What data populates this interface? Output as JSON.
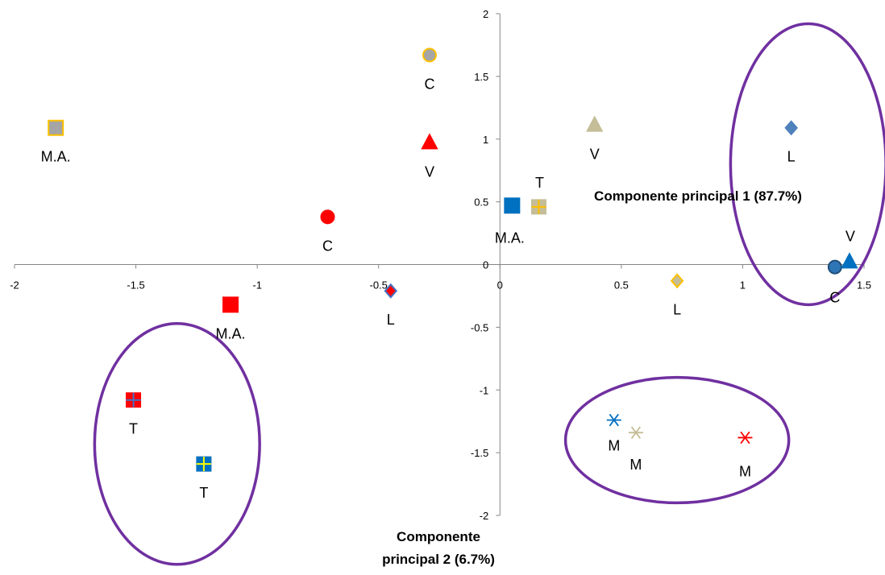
{
  "chart_data": {
    "type": "scatter",
    "xlim": [
      -2,
      1.5
    ],
    "ylim": [
      -2,
      2
    ],
    "x_ticks": [
      "-2",
      "-1.5",
      "-1",
      "-0.5",
      "0",
      "0.5",
      "1",
      "1.5"
    ],
    "y_ticks": [
      "2",
      "1.5",
      "1",
      "0.5",
      "0",
      "-0.5",
      "-1",
      "-1.5",
      "-2"
    ],
    "xlabel": "Componente principal 1 (87.7%)",
    "ylabel": "Componente principal 2 (6.7%)",
    "grid": false,
    "legend": "none",
    "points": [
      {
        "x": -0.29,
        "y": 1.67,
        "label": "C",
        "marker": "circle",
        "fill": "#a5a5a5",
        "stroke": "#ffc000"
      },
      {
        "x": -1.83,
        "y": 1.09,
        "label": "M.A.",
        "marker": "square",
        "fill": "#a5a5a5",
        "stroke": "#ffc000"
      },
      {
        "x": -0.29,
        "y": 0.97,
        "label": "V",
        "marker": "triangle",
        "fill": "#ff0000",
        "stroke": "#ff0000"
      },
      {
        "x": -0.71,
        "y": 0.38,
        "label": "C",
        "marker": "circle",
        "fill": "#ff0000",
        "stroke": "#ff0000"
      },
      {
        "x": -1.11,
        "y": -0.32,
        "label": "M.A.",
        "marker": "square",
        "fill": "#ff0000",
        "stroke": "#ff0000"
      },
      {
        "x": -0.45,
        "y": -0.21,
        "label": "L",
        "marker": "diamond",
        "fill": "#ff0000",
        "stroke": "#4472c4"
      },
      {
        "x": 0.05,
        "y": 0.47,
        "label": "M.A.",
        "marker": "square",
        "fill": "#0070c0",
        "stroke": "#0070c0"
      },
      {
        "x": 0.16,
        "y": 0.46,
        "label": "T",
        "marker": "square-plus",
        "fill": "#c4bd97",
        "stroke": "#ffc000"
      },
      {
        "x": 0.39,
        "y": 1.11,
        "label": "V",
        "marker": "triangle",
        "fill": "#c4bd97",
        "stroke": "#c4bd97"
      },
      {
        "x": 0.73,
        "y": -0.13,
        "label": "L",
        "marker": "diamond",
        "fill": "#c4bd97",
        "stroke": "#ffc000"
      },
      {
        "x": 1.2,
        "y": 1.09,
        "label": "L",
        "marker": "diamond",
        "fill": "#4f81bd",
        "stroke": "#4f81bd"
      },
      {
        "x": 1.38,
        "y": -0.02,
        "label": "C",
        "marker": "circle",
        "fill": "#2e75b6",
        "stroke": "#1f4e79"
      },
      {
        "x": 1.44,
        "y": 0.02,
        "label": "V",
        "marker": "triangle",
        "fill": "#0070c0",
        "stroke": "#0070c0"
      },
      {
        "x": -1.51,
        "y": -1.08,
        "label": "T",
        "marker": "square-plus",
        "fill": "#ff0000",
        "stroke": "#4472c4"
      },
      {
        "x": -1.22,
        "y": -1.59,
        "label": "T",
        "marker": "square-plus",
        "fill": "#0070c0",
        "stroke": "#ffff00"
      },
      {
        "x": 0.47,
        "y": -1.24,
        "label": "M",
        "marker": "asterisk",
        "fill": "none",
        "stroke": "#0070c0"
      },
      {
        "x": 0.56,
        "y": -1.34,
        "label": "M",
        "marker": "asterisk",
        "fill": "none",
        "stroke": "#c4bd97"
      },
      {
        "x": 1.01,
        "y": -1.38,
        "label": "M",
        "marker": "asterisk",
        "fill": "none",
        "stroke": "#ff0000"
      }
    ],
    "clusters": [
      {
        "cx": 1.27,
        "cy": 0.8,
        "rx": 0.32,
        "ry": 1.12,
        "color": "#7030a0"
      },
      {
        "cx": -1.33,
        "cy": -1.43,
        "rx": 0.34,
        "ry": 0.96,
        "color": "#7030a0"
      },
      {
        "cx": 0.73,
        "cy": -1.4,
        "rx": 0.46,
        "ry": 0.5,
        "color": "#7030a0"
      }
    ]
  }
}
